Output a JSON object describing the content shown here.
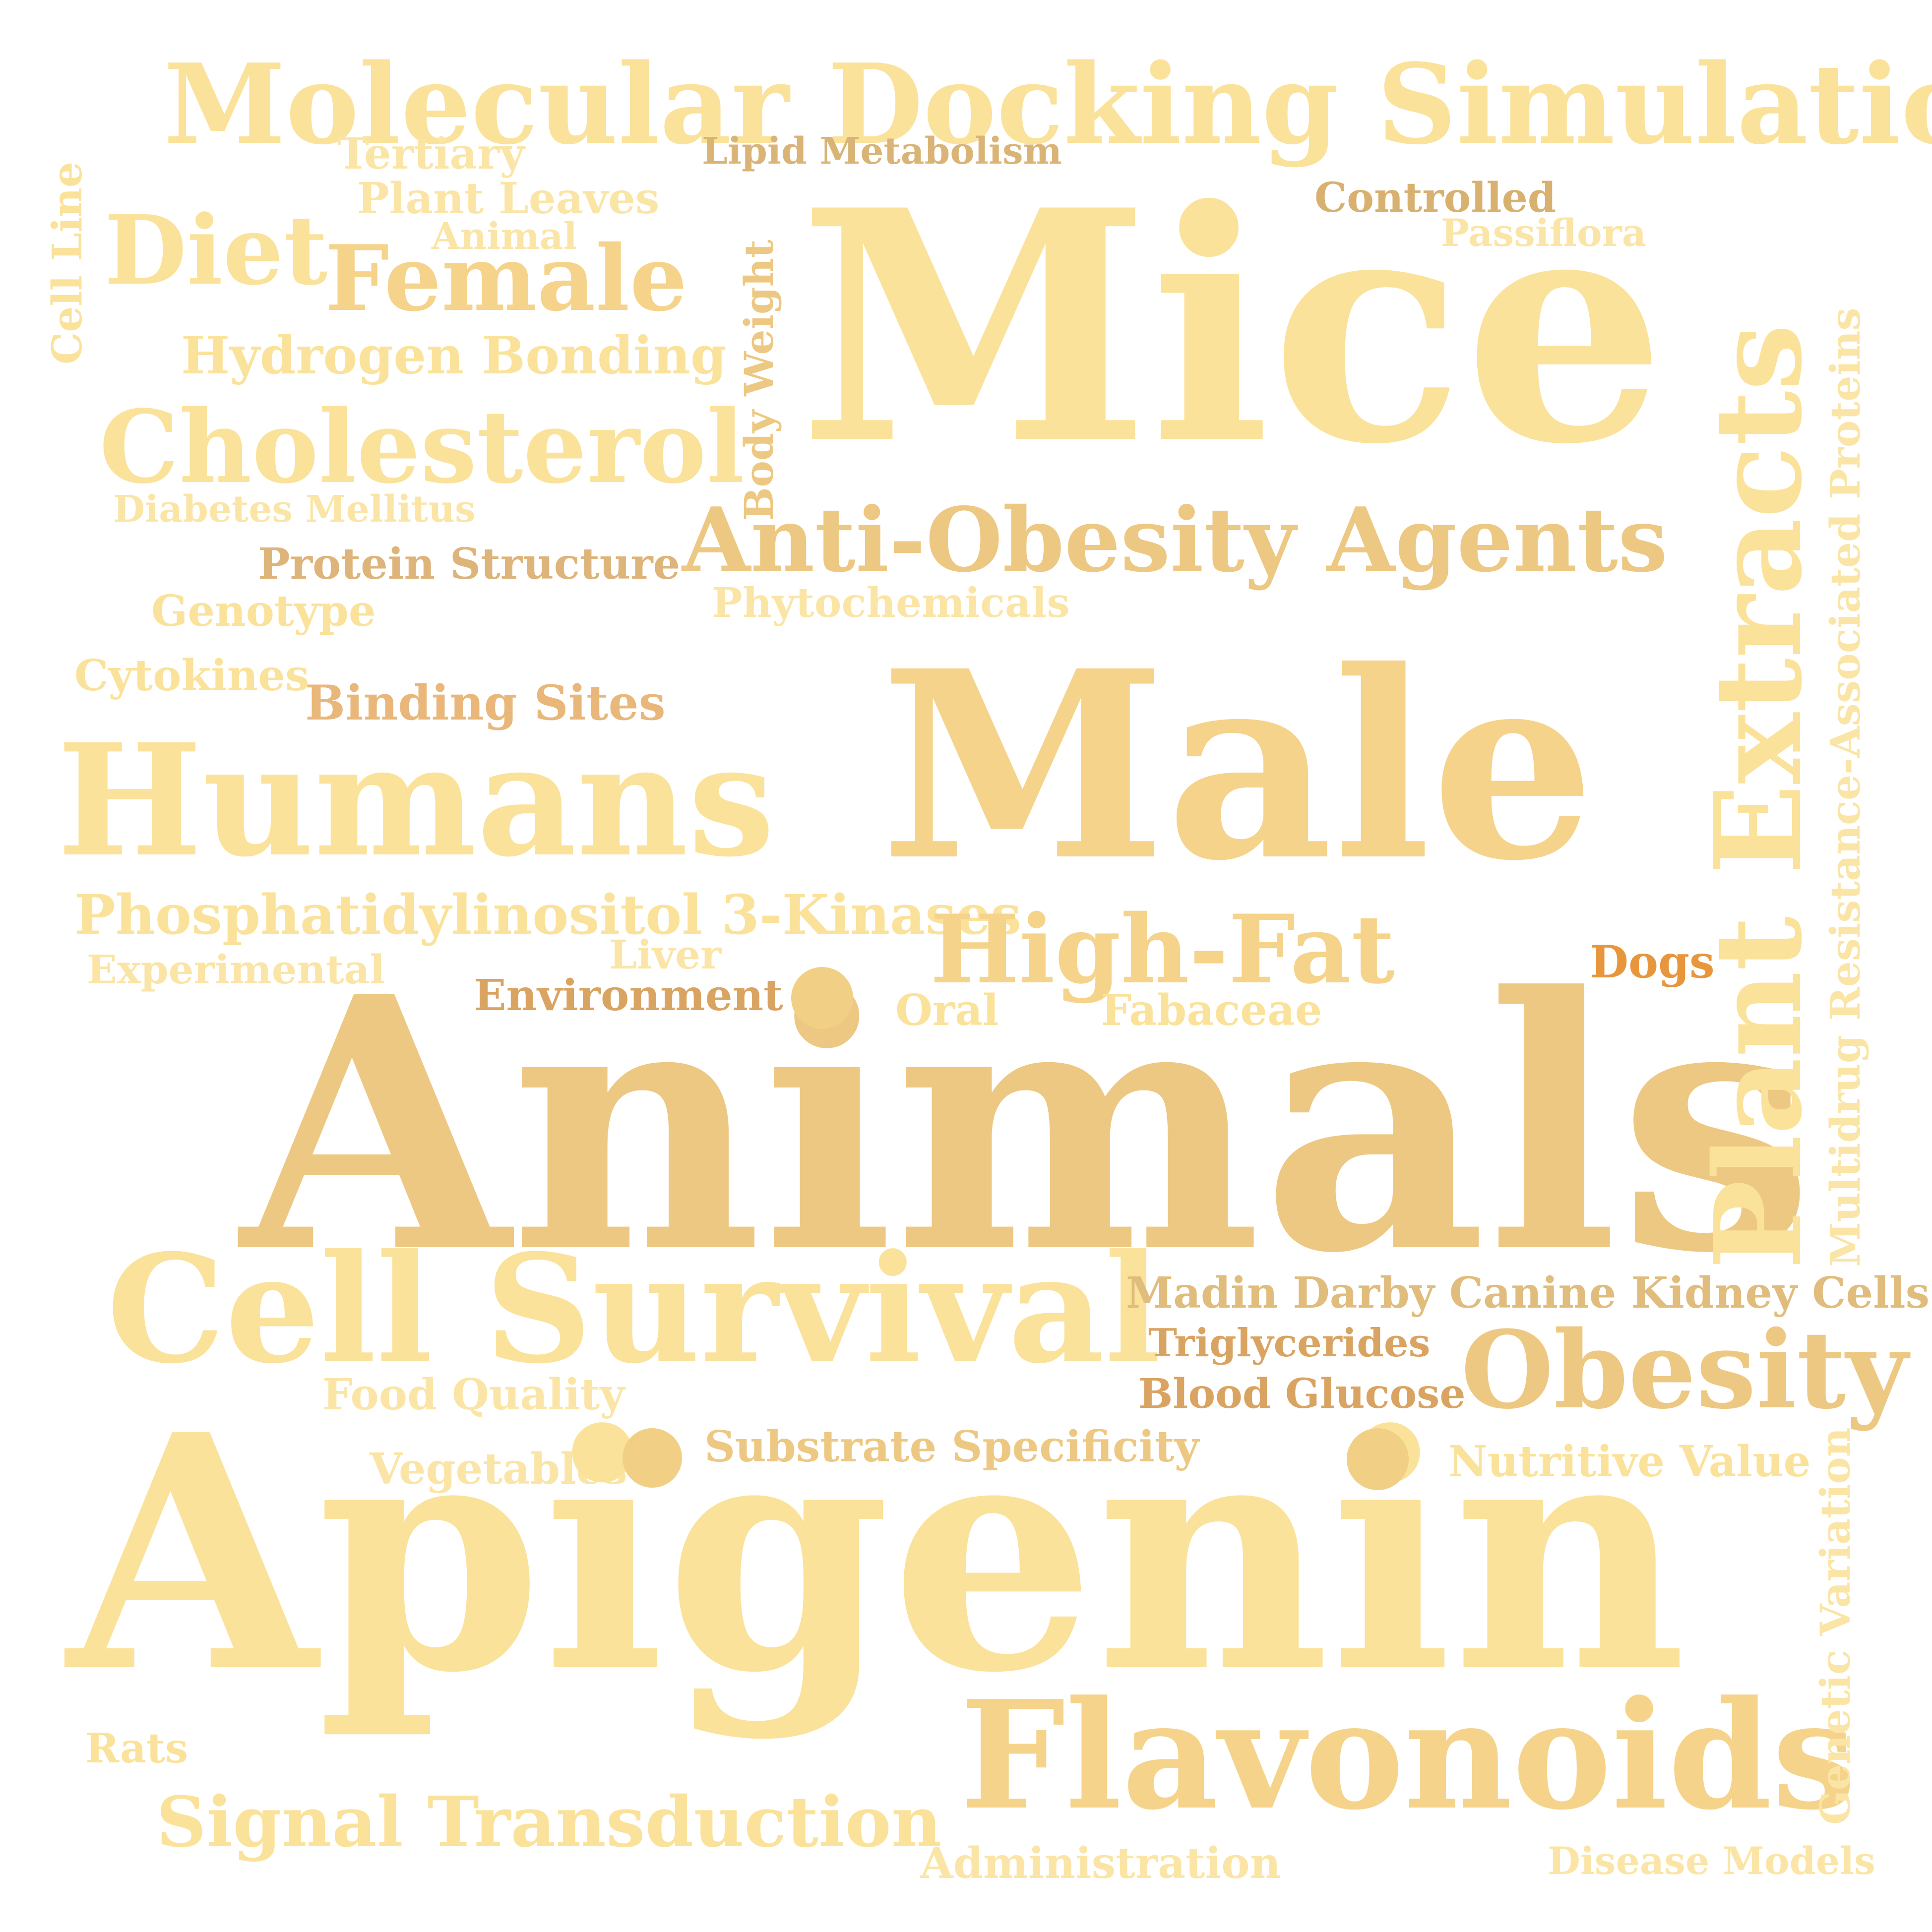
{
  "colors": {
    "light": "#fbe29b",
    "pale": "#fbe5a6",
    "mid": "#f5d38a",
    "tan": "#edc882",
    "khaki": "#d8b06f",
    "brown": "#d9a462",
    "orange": "#e8963c"
  },
  "words": {
    "molecular_docking_simulation": "Molecular Docking Simulation",
    "tertiary": "Tertiary",
    "lipid_metabolism": "Lipid Metabolism",
    "plant_leaves": "Plant Leaves",
    "controlled": "Controlled",
    "passiflora": "Passiflora",
    "animal": "Animal",
    "cell_line": "Cell Line",
    "diet": "Diet",
    "female": "Female",
    "body_weight": "Body Weight",
    "mice": "Mice",
    "hydrogen_bonding": "Hydrogen Bonding",
    "plant_extracts": "Plant Extracts",
    "cholesterol": "Cholesterol",
    "multidrug_resistance": "Multidrug Resistance-Associated Proteins",
    "diabetes_mellitus": "Diabetes Mellitus",
    "anti_obesity_agents": "Anti-Obesity Agents",
    "protein_structure": "Protein Structure",
    "genotype": "Genotype",
    "phytochemicals": "Phytochemicals",
    "cytokines": "Cytokines",
    "binding_sites": "Binding Sites",
    "male": "Male",
    "humans": "Humans",
    "phosphatidylinositol": "Phosphatidylinositol 3-Kinases",
    "high_fat": "High-Fat",
    "experimental": "Experimental",
    "liver": "Liver",
    "dogs": "Dogs",
    "environment": "Environment",
    "oral": "Oral",
    "fabaceae": "Fabaceae",
    "animals": "Animals",
    "cell_survival": "Cell Survival",
    "madin_darby": "Madin Darby Canine Kidney Cells",
    "triglycerides": "Triglycerides",
    "obesity": "Obesity",
    "food_quality": "Food Quality",
    "blood_glucose": "Blood Glucose",
    "substrate_specificity": "Substrate Specificity",
    "vegetables": "Vegetables",
    "nutritive_value": "Nutritive Value",
    "genetic_variation": "Genetic Variation",
    "apigenin": "Apigenin",
    "rats": "Rats",
    "flavonoids": "Flavonoids",
    "signal_transduction": "Signal Transduction",
    "administration": "Administration",
    "disease_models": "Disease Models"
  }
}
